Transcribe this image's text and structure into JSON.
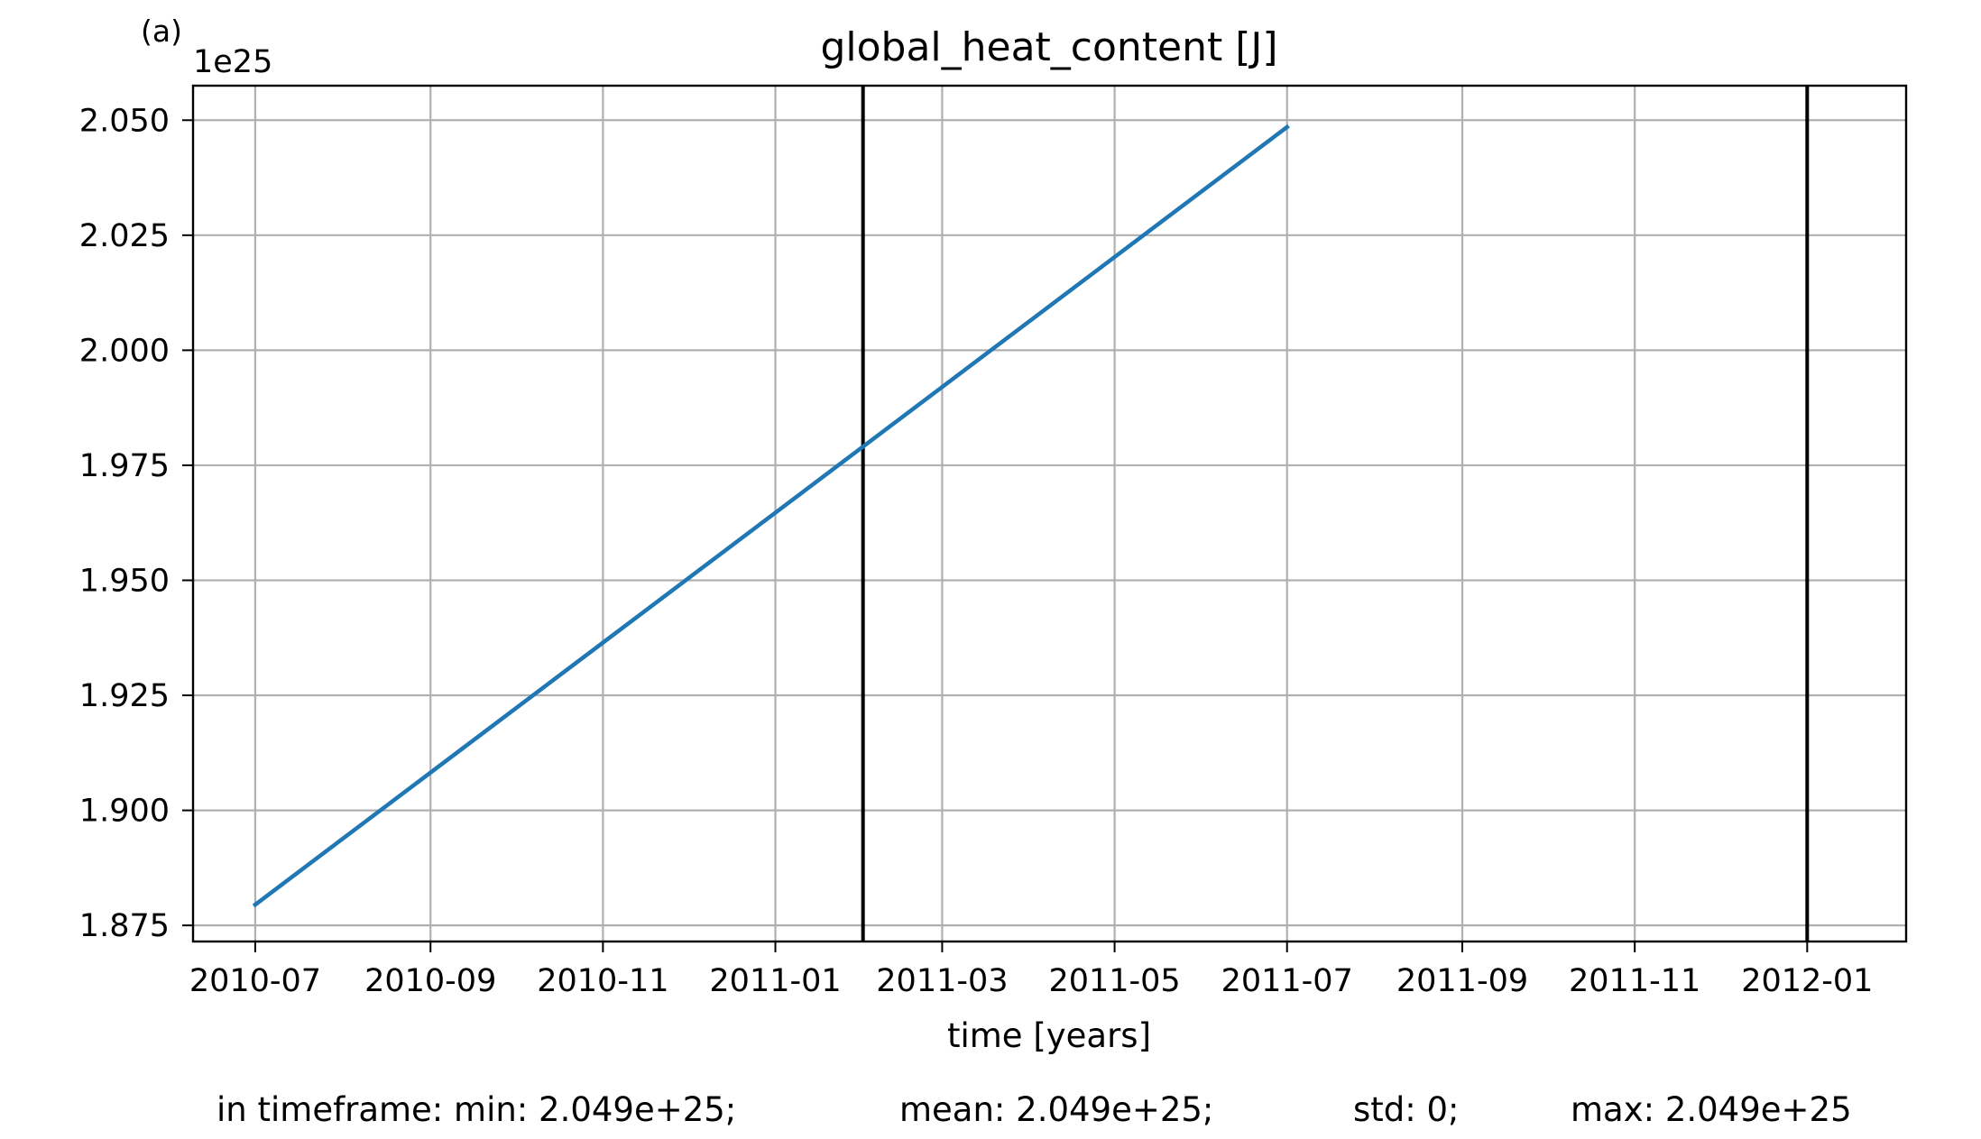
{
  "panel_label": "(a)",
  "chart_data": {
    "type": "line",
    "title": "global_heat_content [J]",
    "xlabel": "time [years]",
    "ylabel": "",
    "y_offset_label": "1e25",
    "y_scale_factor": 1e+25,
    "xlim": [
      "2010-06-09",
      "2012-02-05"
    ],
    "ylim": [
      1.8715,
      2.0575
    ],
    "x_ticks": [
      "2010-07",
      "2010-09",
      "2010-11",
      "2011-01",
      "2011-03",
      "2011-05",
      "2011-07",
      "2011-09",
      "2011-11",
      "2012-01"
    ],
    "x_tick_dates": [
      "2010-07-01",
      "2010-09-01",
      "2010-11-01",
      "2011-01-01",
      "2011-03-01",
      "2011-05-01",
      "2011-07-01",
      "2011-09-01",
      "2011-11-01",
      "2012-01-01"
    ],
    "y_ticks": [
      1.875,
      1.9,
      1.925,
      1.95,
      1.975,
      2.0,
      2.025,
      2.05
    ],
    "y_tick_labels": [
      "1.875",
      "1.900",
      "1.925",
      "1.950",
      "1.975",
      "2.000",
      "2.025",
      "2.050"
    ],
    "grid": true,
    "series": [
      {
        "color": "#1f77b4",
        "x": [
          "2010-07-01",
          "2011-07-01"
        ],
        "y": [
          1.8795,
          2.0485
        ]
      }
    ],
    "vertical_lines": [
      {
        "x": "2011-02-01",
        "color": "#000000"
      },
      {
        "x": "2012-01-01",
        "color": "#000000"
      }
    ]
  },
  "stats": {
    "min": "in timeframe: min: 2.049e+25;",
    "mean": "mean: 2.049e+25;",
    "std": "std: 0;",
    "max": "max: 2.049e+25"
  }
}
